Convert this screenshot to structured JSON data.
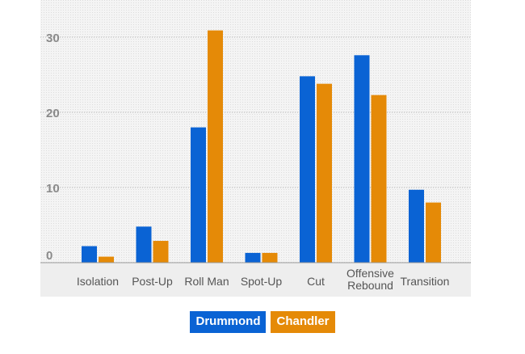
{
  "chart_data": {
    "type": "bar",
    "categories": [
      "Isolation",
      "Post-Up",
      "Roll Man",
      "Spot-Up",
      "Cut",
      "Offensive Rebound",
      "Transition"
    ],
    "category_lines": [
      [
        "Isolation"
      ],
      [
        "Post-Up"
      ],
      [
        "Roll Man"
      ],
      [
        "Spot-Up"
      ],
      [
        "Cut"
      ],
      [
        "Offensive",
        "Rebound"
      ],
      [
        "Transition"
      ]
    ],
    "series": [
      {
        "name": "Drummond",
        "color": "#0a63d4",
        "values": [
          2.2,
          4.8,
          18.0,
          1.3,
          24.8,
          27.6,
          9.7
        ]
      },
      {
        "name": "Chandler",
        "color": "#e58a07",
        "values": [
          0.8,
          2.9,
          30.9,
          1.3,
          23.8,
          22.3,
          8.0
        ]
      }
    ],
    "ylim": [
      0,
      35
    ],
    "yticks": [
      0,
      10,
      20,
      30
    ],
    "grid": true,
    "legend_position": "bottom-center"
  },
  "colors": {
    "plot_background": "#efefef",
    "axis_label": "#8a8a8a",
    "category_label": "#555555",
    "gridline": "#b3b3b3",
    "baseline": "#999999"
  }
}
